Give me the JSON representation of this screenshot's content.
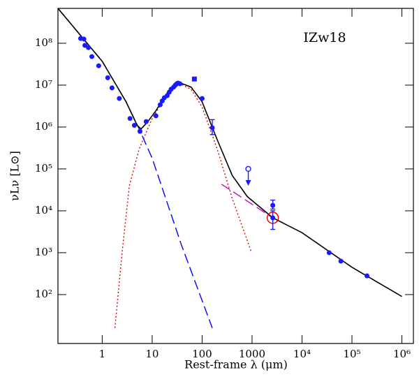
{
  "chart_data": {
    "type": "sed",
    "title": "IZw18",
    "x_label": "Rest-frame λ (μm)",
    "y_label": "νLν [L⊙]",
    "log_x": true,
    "log_y": true,
    "xlim": [
      0.13,
      1700000
    ],
    "ylim": [
      6.8,
      680000000
    ],
    "xticks": [
      1,
      10,
      100,
      1000,
      {
        "value": 10000,
        "label": "10⁴"
      },
      {
        "value": 100000,
        "label": "10⁵"
      },
      {
        "value": 1000000,
        "label": "10⁶"
      }
    ],
    "yticks": [
      {
        "value": 100,
        "label": "10²"
      },
      {
        "value": 1000,
        "label": "10³"
      },
      {
        "value": 10000,
        "label": "10⁴"
      },
      {
        "value": 100000,
        "label": "10⁵"
      },
      {
        "value": 1000000,
        "label": "10⁶"
      },
      {
        "value": 10000000,
        "label": "10⁷"
      },
      {
        "value": 100000000,
        "label": "10⁸"
      }
    ],
    "series": [
      {
        "kind": "line",
        "style": "dashed",
        "color": "#0000ff",
        "x": [
          0.13,
          1,
          3,
          5.5,
          10,
          38,
          160
        ],
        "values": [
          680000000,
          37000000,
          4000000,
          900000,
          180000,
          1600,
          16
        ]
      },
      {
        "kind": "line",
        "style": "dotted",
        "color": "#e00000",
        "x": [
          1.8,
          2.5,
          3.5,
          5.5,
          10,
          20,
          35,
          60,
          100,
          200,
          400,
          950
        ],
        "values": [
          16,
          1000,
          40000,
          300000,
          1600000,
          6000000,
          11000000,
          8000000,
          3000000,
          300000,
          20000,
          1100
        ]
      },
      {
        "kind": "line",
        "style": "dashed",
        "color": "#cc00cc",
        "x": [
          245,
          2600
        ],
        "values": [
          43000,
          6800
        ]
      },
      {
        "kind": "line",
        "style": "solid",
        "color": "#000000",
        "x": [
          0.13,
          1,
          3,
          5,
          6,
          8,
          12,
          20,
          35,
          60,
          100,
          200,
          400,
          800,
          2600,
          10000,
          100000,
          1000000
        ],
        "values": [
          680000000,
          37000000,
          4000000,
          1100000,
          900000,
          1300000,
          2500000,
          6500000,
          11500000,
          9000000,
          4000000,
          500000,
          70000,
          22000,
          6800,
          3000,
          450,
          90
        ]
      },
      {
        "kind": "points",
        "marker": "dot",
        "color": "#1a1aff",
        "x": [
          0.37,
          0.43,
          0.45,
          0.53,
          0.62,
          0.85,
          1.29,
          1.57,
          2.2,
          3.6,
          4.4,
          5.7,
          7.6,
          11.9,
          14.5,
          15.9,
          17.5,
          20,
          22,
          24,
          27,
          29,
          31,
          33,
          36,
          100,
          35000,
          60000,
          200000
        ],
        "values": [
          130000000,
          126000000,
          89000000,
          79000000,
          48000000,
          29000000,
          15000000,
          8600000,
          4800000,
          1600000,
          1100000,
          790000,
          1350000,
          1850000,
          3400000,
          4200000,
          5000000,
          5600000,
          6800000,
          8000000,
          9000000,
          10000000,
          10800000,
          11200000,
          10800000,
          4800000,
          1000,
          630,
          280
        ]
      },
      {
        "kind": "points",
        "marker": "dot",
        "color": "#1a1aff",
        "x": [
          160,
          2600,
          2600
        ],
        "values": [
          960000,
          13500,
          6800
        ],
        "low": [
          660000,
          11000,
          3600
        ],
        "high": [
          1500000,
          18000,
          10000
        ]
      },
      {
        "kind": "points",
        "marker": "square",
        "color": "#1a1aff",
        "x": [
          70
        ],
        "values": [
          14000000
        ]
      },
      {
        "kind": "points",
        "marker": "upper_limit",
        "color": "#1a1aff",
        "x": [
          840
        ],
        "values": [
          100000
        ]
      },
      {
        "kind": "points",
        "marker": "open_circle",
        "color": "#e00000",
        "x": [
          2600
        ],
        "values": [
          6800
        ]
      }
    ]
  }
}
